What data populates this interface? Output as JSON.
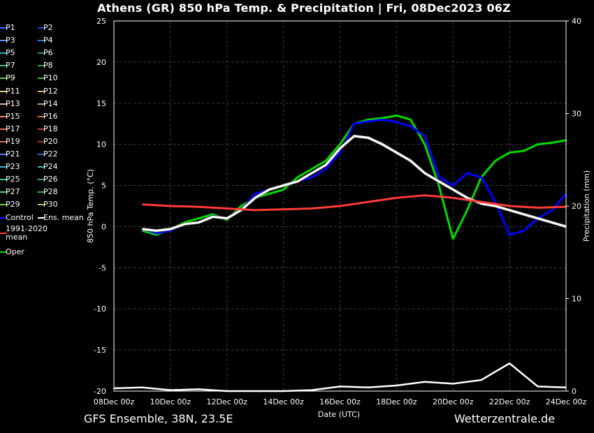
{
  "title": "Athens  (GR)  850 hPa Temp. & Precipitation | Fri, 08Dec2023 06Z",
  "footer_left": "GFS Ensemble, 38N, 23.5E",
  "footer_right": "Wetterzentrale.de",
  "legend": [
    {
      "label": "P1",
      "color": "#3a66ff"
    },
    {
      "label": "P2",
      "color": "#2244cc"
    },
    {
      "label": "P3",
      "color": "#4f8fff"
    },
    {
      "label": "P4",
      "color": "#2a7fd0"
    },
    {
      "label": "P5",
      "color": "#35a0c8"
    },
    {
      "label": "P6",
      "color": "#2a9a80"
    },
    {
      "label": "P7",
      "color": "#3fbf6f"
    },
    {
      "label": "P8",
      "color": "#2fa04f"
    },
    {
      "label": "P9",
      "color": "#5ccc3a"
    },
    {
      "label": "P10",
      "color": "#3ab83a"
    },
    {
      "label": "P11",
      "color": "#e0d070"
    },
    {
      "label": "P12",
      "color": "#d8b860"
    },
    {
      "label": "P13",
      "color": "#e8b080"
    },
    {
      "label": "P14",
      "color": "#d0a070"
    },
    {
      "label": "P15",
      "color": "#f08a60"
    },
    {
      "label": "P16",
      "color": "#d07040"
    },
    {
      "label": "P17",
      "color": "#f07060"
    },
    {
      "label": "P18",
      "color": "#c04040"
    },
    {
      "label": "P19",
      "color": "#e06a4a"
    },
    {
      "label": "P20",
      "color": "#a03020"
    },
    {
      "label": "P21",
      "color": "#5a80ff"
    },
    {
      "label": "P22",
      "color": "#3070d0"
    },
    {
      "label": "P23",
      "color": "#40b0d8"
    },
    {
      "label": "P24",
      "color": "#48b8c0"
    },
    {
      "label": "P25",
      "color": "#40c890"
    },
    {
      "label": "P26",
      "color": "#30a070"
    },
    {
      "label": "P27",
      "color": "#50d060"
    },
    {
      "label": "P28",
      "color": "#38b040"
    },
    {
      "label": "P29",
      "color": "#70d040"
    },
    {
      "label": "P30",
      "color": "#c8c060"
    },
    {
      "label": "Control",
      "color": "#0000ff"
    },
    {
      "label": "Ens. mean",
      "color": "#ffffff"
    },
    {
      "label": "1991-2020 mean",
      "color": "#ff3a3a"
    },
    {
      "label": "Oper",
      "color": "#00dd00"
    }
  ],
  "chart_data": {
    "type": "line",
    "xlabel": "Date (UTC)",
    "ylabel": "850 hPa Temp. (°C)",
    "y2label": "Precipitation (mm)",
    "x_ticks": [
      "08Dec 00z",
      "10Dec 00z",
      "12Dec 00z",
      "14Dec 00z",
      "16Dec 00z",
      "18Dec 00z",
      "20Dec 00z",
      "22Dec 00z",
      "24Dec 00z"
    ],
    "x_range_days": [
      0,
      16
    ],
    "ylim": [
      -20,
      25
    ],
    "y_ticks": [
      -20,
      -15,
      -10,
      -5,
      0,
      5,
      10,
      15,
      20,
      25
    ],
    "y2lim": [
      0,
      40
    ],
    "y2_ticks": [
      0,
      10,
      20,
      30,
      40
    ],
    "grid": true,
    "series": [
      {
        "name": "Oper",
        "color": "#00dd00",
        "x": [
          1,
          1.5,
          2,
          2.5,
          3,
          3.5,
          4,
          4.5,
          5,
          5.5,
          6,
          6.5,
          7,
          7.5,
          8,
          8.5,
          9,
          9.5,
          10,
          10.5,
          11,
          11.5,
          12,
          12.5,
          13,
          13.5,
          14,
          14.5,
          15,
          15.5,
          16
        ],
        "y": [
          -0.5,
          -1,
          -0.3,
          0.5,
          1,
          1.5,
          0.8,
          2.5,
          3.5,
          4,
          4.5,
          6,
          7,
          8,
          10,
          12.5,
          13,
          13.2,
          13.5,
          13,
          10,
          5,
          -1.5,
          2,
          6,
          8,
          9,
          9.2,
          10,
          10.2,
          10.5
        ]
      },
      {
        "name": "Control",
        "color": "#0000ff",
        "x": [
          1,
          1.5,
          2,
          2.5,
          3,
          3.5,
          4,
          4.5,
          5,
          5.5,
          6,
          6.5,
          7,
          7.5,
          8,
          8.5,
          9,
          9.5,
          10,
          10.5,
          11,
          11.5,
          12,
          12.5,
          13,
          13.5,
          14,
          14.5,
          15,
          15.5,
          16
        ],
        "y": [
          -0.3,
          -0.8,
          -0.5,
          0.3,
          0.5,
          1.3,
          1,
          2,
          4,
          4.5,
          5,
          5.5,
          6,
          7,
          9,
          12.5,
          12.8,
          13,
          12.7,
          12.2,
          11,
          6,
          5,
          6.5,
          6,
          3,
          -1,
          -0.5,
          1,
          2,
          4
        ]
      },
      {
        "name": "Ens. mean",
        "color": "#ffffff",
        "x": [
          1,
          1.5,
          2,
          2.5,
          3,
          3.5,
          4,
          4.5,
          5,
          5.5,
          6,
          6.5,
          7,
          7.5,
          8,
          8.5,
          9,
          9.5,
          10,
          10.5,
          11,
          11.5,
          12,
          12.5,
          13,
          13.5,
          14,
          14.5,
          15,
          15.5,
          16
        ],
        "y": [
          -0.3,
          -0.5,
          -0.3,
          0.3,
          0.5,
          1.2,
          1,
          2,
          3.5,
          4.5,
          5,
          5.5,
          6.5,
          7.5,
          9.5,
          11,
          10.8,
          10,
          9,
          8,
          6.5,
          5.5,
          4.5,
          3.5,
          2.8,
          2.5,
          2,
          1.5,
          1,
          0.5,
          0
        ]
      },
      {
        "name": "1991-2020 mean",
        "color": "#ff3a3a",
        "x": [
          1,
          2,
          3,
          4,
          5,
          6,
          7,
          8,
          9,
          10,
          11,
          12,
          13,
          14,
          15,
          16
        ],
        "y": [
          2.7,
          2.5,
          2.4,
          2.2,
          2,
          2.1,
          2.2,
          2.5,
          3,
          3.5,
          3.8,
          3.5,
          3,
          2.5,
          2.3,
          2.4
        ]
      }
    ],
    "precipitation_series": [
      {
        "name": "Ens. mean precipitation",
        "color": "#ffffff",
        "x": [
          0,
          1,
          2,
          3,
          4,
          5,
          6,
          7,
          8,
          9,
          10,
          11,
          12,
          13,
          14,
          15,
          16
        ],
        "y": [
          0.3,
          0.4,
          0.1,
          0.2,
          0,
          0,
          0,
          0.1,
          0.5,
          0.4,
          0.6,
          1.0,
          0.8,
          1.2,
          3.0,
          0.5,
          0.4
        ]
      }
    ]
  }
}
